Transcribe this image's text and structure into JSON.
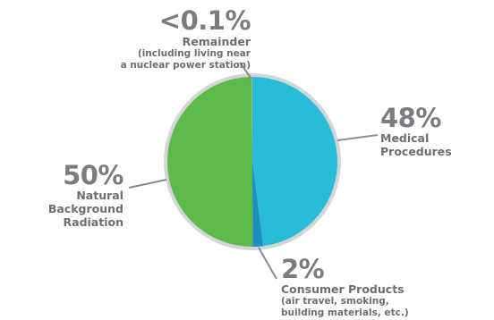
{
  "chart_data": {
    "type": "pie",
    "slices": [
      {
        "label": "Medical Procedures",
        "percent_text": "48%",
        "value": 48,
        "color": "#29bcd9",
        "description": ""
      },
      {
        "label": "Consumer Products",
        "percent_text": "2%",
        "value": 2,
        "color": "#1b8fbd",
        "description_lines": [
          "(air travel, smoking,",
          "building materials, etc.)"
        ]
      },
      {
        "label": "Natural Background Radiation",
        "label_lines": [
          "Natural Background",
          "Radiation"
        ],
        "percent_text": "50%",
        "value": 50,
        "color": "#5cb94a",
        "description": ""
      },
      {
        "label": "Remainder",
        "percent_text": "<0.1%",
        "value": 0.1,
        "color": "#bfbfbf",
        "description_lines": [
          "(including living near",
          "a nuclear power station)"
        ]
      }
    ],
    "ring_color": "#d4d5d6",
    "leader_color": "#8a8b8d"
  }
}
